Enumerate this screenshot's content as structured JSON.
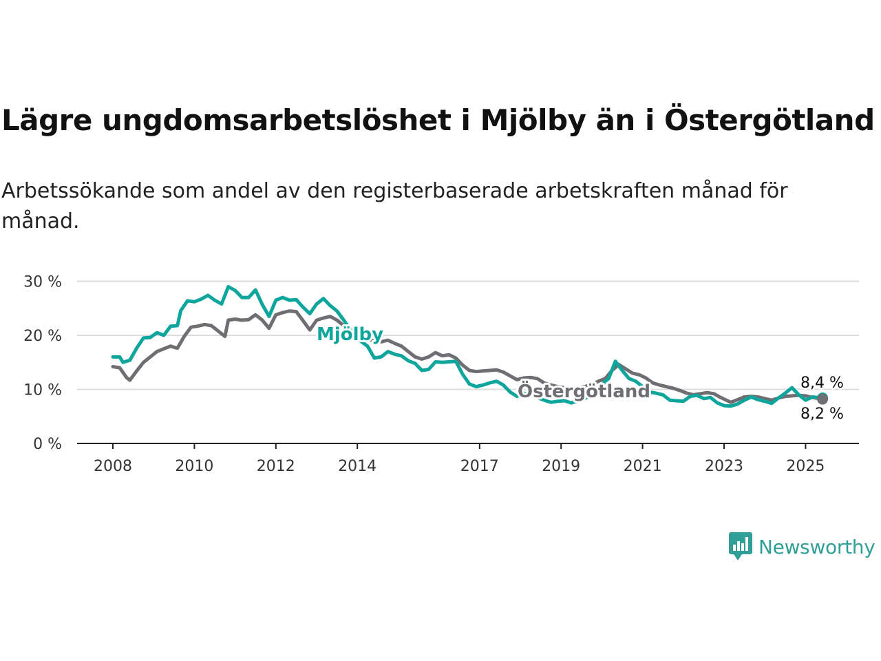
{
  "brand": {
    "name": "Newsworthy",
    "icon": "bar-chart-speech-bubble-icon",
    "color": "#2f9f97"
  },
  "chart_data": {
    "type": "line",
    "title": "Lägre ungdomsarbetslöshet i Mjölby än i Östergötland",
    "subtitle": "Arbetssökande som andel av den registerbaserade arbetskraften månad för månad.",
    "xlabel": "",
    "ylabel": "",
    "x_ticks": [
      "2008",
      "2010",
      "2012",
      "2014",
      "2017",
      "2019",
      "2021",
      "2023",
      "2025"
    ],
    "y_ticks": [
      "0 %",
      "10 %",
      "20 %",
      "30 %"
    ],
    "ylim": [
      0,
      30
    ],
    "xlim": [
      "2008-01",
      "2025-06"
    ],
    "grid": true,
    "legend": "none (direct labels)",
    "series": [
      {
        "name": "Mjölby",
        "color": "#0ea59c",
        "end_label": "8,4 %",
        "points": [
          [
            "2008-01",
            16.0
          ],
          [
            "2008-03",
            16.0
          ],
          [
            "2008-04",
            15.0
          ],
          [
            "2008-06",
            15.4
          ],
          [
            "2008-08",
            17.6
          ],
          [
            "2008-10",
            19.5
          ],
          [
            "2008-12",
            19.6
          ],
          [
            "2009-02",
            20.5
          ],
          [
            "2009-04",
            20.0
          ],
          [
            "2009-06",
            21.7
          ],
          [
            "2009-08",
            21.8
          ],
          [
            "2009-09",
            24.6
          ],
          [
            "2009-11",
            26.4
          ],
          [
            "2010-01",
            26.2
          ],
          [
            "2010-03",
            26.7
          ],
          [
            "2010-05",
            27.4
          ],
          [
            "2010-07",
            26.5
          ],
          [
            "2010-09",
            25.8
          ],
          [
            "2010-11",
            29.0
          ],
          [
            "2011-01",
            28.3
          ],
          [
            "2011-03",
            27.0
          ],
          [
            "2011-05",
            27.0
          ],
          [
            "2011-07",
            28.4
          ],
          [
            "2011-09",
            25.7
          ],
          [
            "2011-11",
            23.5
          ],
          [
            "2012-01",
            26.5
          ],
          [
            "2012-03",
            27.0
          ],
          [
            "2012-05",
            26.5
          ],
          [
            "2012-07",
            26.6
          ],
          [
            "2012-09",
            25.2
          ],
          [
            "2012-11",
            24.0
          ],
          [
            "2013-01",
            25.8
          ],
          [
            "2013-03",
            26.8
          ],
          [
            "2013-05",
            25.5
          ],
          [
            "2013-07",
            24.5
          ],
          [
            "2013-09",
            22.8
          ],
          [
            "2013-11",
            21.0
          ],
          [
            "2014-01",
            19.4
          ],
          [
            "2014-04",
            18.0
          ],
          [
            "2014-06",
            15.8
          ],
          [
            "2014-08",
            16.0
          ],
          [
            "2014-10",
            17.0
          ],
          [
            "2014-12",
            16.5
          ],
          [
            "2015-02",
            16.2
          ],
          [
            "2015-04",
            15.3
          ],
          [
            "2015-06",
            14.8
          ],
          [
            "2015-08",
            13.5
          ],
          [
            "2015-10",
            13.7
          ],
          [
            "2015-12",
            15.1
          ],
          [
            "2016-02",
            15.0
          ],
          [
            "2016-04",
            15.1
          ],
          [
            "2016-06",
            15.2
          ],
          [
            "2016-08",
            12.8
          ],
          [
            "2016-10",
            11.0
          ],
          [
            "2016-12",
            10.5
          ],
          [
            "2017-02",
            10.8
          ],
          [
            "2017-04",
            11.2
          ],
          [
            "2017-06",
            11.5
          ],
          [
            "2017-08",
            10.8
          ],
          [
            "2017-10",
            9.5
          ],
          [
            "2017-12",
            8.7
          ],
          [
            "2018-02",
            9.3
          ],
          [
            "2018-04",
            8.9
          ],
          [
            "2018-06",
            8.5
          ],
          [
            "2018-08",
            8.0
          ],
          [
            "2018-10",
            7.6
          ],
          [
            "2018-12",
            7.8
          ],
          [
            "2019-02",
            7.9
          ],
          [
            "2019-04",
            7.5
          ],
          [
            "2019-06",
            7.9
          ],
          [
            "2019-08",
            8.3
          ],
          [
            "2019-10",
            9.0
          ],
          [
            "2019-12",
            10.0
          ],
          [
            "2020-02",
            11.5
          ],
          [
            "2020-03",
            12.0
          ],
          [
            "2020-05",
            15.2
          ],
          [
            "2020-07",
            13.5
          ],
          [
            "2020-09",
            12.0
          ],
          [
            "2020-11",
            11.5
          ],
          [
            "2021-01",
            10.5
          ],
          [
            "2021-03",
            9.5
          ],
          [
            "2021-05",
            9.3
          ],
          [
            "2021-07",
            9.0
          ],
          [
            "2021-09",
            8.0
          ],
          [
            "2021-11",
            7.9
          ],
          [
            "2022-01",
            7.8
          ],
          [
            "2022-03",
            8.7
          ],
          [
            "2022-05",
            8.9
          ],
          [
            "2022-07",
            8.3
          ],
          [
            "2022-09",
            8.5
          ],
          [
            "2022-11",
            7.5
          ],
          [
            "2023-01",
            7.0
          ],
          [
            "2023-03",
            6.9
          ],
          [
            "2023-05",
            7.3
          ],
          [
            "2023-07",
            8.0
          ],
          [
            "2023-09",
            8.6
          ],
          [
            "2023-11",
            8.1
          ],
          [
            "2024-01",
            7.8
          ],
          [
            "2024-03",
            7.4
          ],
          [
            "2024-05",
            8.4
          ],
          [
            "2024-07",
            9.3
          ],
          [
            "2024-09",
            10.3
          ],
          [
            "2024-11",
            9.0
          ],
          [
            "2025-01",
            8.0
          ],
          [
            "2025-03",
            8.6
          ],
          [
            "2025-06",
            8.4
          ]
        ]
      },
      {
        "name": "Östergötland",
        "color": "#6e6e73",
        "end_label": "8,2 %",
        "points": [
          [
            "2008-01",
            14.2
          ],
          [
            "2008-03",
            14.0
          ],
          [
            "2008-05",
            12.2
          ],
          [
            "2008-06",
            11.7
          ],
          [
            "2008-08",
            13.4
          ],
          [
            "2008-10",
            15.0
          ],
          [
            "2008-12",
            16.0
          ],
          [
            "2009-02",
            17.0
          ],
          [
            "2009-04",
            17.5
          ],
          [
            "2009-06",
            18.0
          ],
          [
            "2009-08",
            17.6
          ],
          [
            "2009-10",
            19.8
          ],
          [
            "2009-12",
            21.5
          ],
          [
            "2010-02",
            21.7
          ],
          [
            "2010-04",
            22.0
          ],
          [
            "2010-06",
            21.8
          ],
          [
            "2010-08",
            20.8
          ],
          [
            "2010-10",
            19.8
          ],
          [
            "2010-11",
            22.8
          ],
          [
            "2011-01",
            23.0
          ],
          [
            "2011-03",
            22.8
          ],
          [
            "2011-05",
            22.9
          ],
          [
            "2011-07",
            23.8
          ],
          [
            "2011-09",
            22.8
          ],
          [
            "2011-11",
            21.3
          ],
          [
            "2012-01",
            23.8
          ],
          [
            "2012-03",
            24.2
          ],
          [
            "2012-05",
            24.5
          ],
          [
            "2012-07",
            24.4
          ],
          [
            "2012-09",
            22.7
          ],
          [
            "2012-11",
            21.0
          ],
          [
            "2013-01",
            22.8
          ],
          [
            "2013-03",
            23.2
          ],
          [
            "2013-05",
            23.5
          ],
          [
            "2013-07",
            22.8
          ],
          [
            "2013-09",
            21.8
          ],
          [
            "2013-11",
            20.8
          ],
          [
            "2014-01",
            19.6
          ],
          [
            "2014-04",
            19.2
          ],
          [
            "2014-06",
            19.0
          ],
          [
            "2014-08",
            18.8
          ],
          [
            "2014-10",
            19.1
          ],
          [
            "2014-12",
            18.5
          ],
          [
            "2015-02",
            18.0
          ],
          [
            "2015-04",
            17.0
          ],
          [
            "2015-06",
            16.0
          ],
          [
            "2015-08",
            15.6
          ],
          [
            "2015-10",
            16.0
          ],
          [
            "2015-12",
            16.8
          ],
          [
            "2016-02",
            16.2
          ],
          [
            "2016-04",
            16.4
          ],
          [
            "2016-06",
            15.8
          ],
          [
            "2016-08",
            14.5
          ],
          [
            "2016-10",
            13.5
          ],
          [
            "2016-12",
            13.3
          ],
          [
            "2017-02",
            13.4
          ],
          [
            "2017-04",
            13.5
          ],
          [
            "2017-06",
            13.6
          ],
          [
            "2017-08",
            13.2
          ],
          [
            "2017-10",
            12.5
          ],
          [
            "2017-12",
            11.8
          ],
          [
            "2018-02",
            12.1
          ],
          [
            "2018-04",
            12.2
          ],
          [
            "2018-06",
            12.0
          ],
          [
            "2018-08",
            11.2
          ],
          [
            "2018-10",
            10.8
          ],
          [
            "2018-12",
            10.5
          ],
          [
            "2019-02",
            10.3
          ],
          [
            "2019-04",
            10.2
          ],
          [
            "2019-06",
            10.3
          ],
          [
            "2019-08",
            10.5
          ],
          [
            "2019-10",
            10.9
          ],
          [
            "2019-12",
            11.5
          ],
          [
            "2020-02",
            12.0
          ],
          [
            "2020-04",
            13.5
          ],
          [
            "2020-06",
            14.6
          ],
          [
            "2020-08",
            13.8
          ],
          [
            "2020-10",
            13.0
          ],
          [
            "2020-12",
            12.7
          ],
          [
            "2021-02",
            12.1
          ],
          [
            "2021-04",
            11.2
          ],
          [
            "2021-06",
            10.8
          ],
          [
            "2021-08",
            10.5
          ],
          [
            "2021-10",
            10.2
          ],
          [
            "2021-12",
            9.8
          ],
          [
            "2022-02",
            9.3
          ],
          [
            "2022-04",
            9.0
          ],
          [
            "2022-06",
            9.2
          ],
          [
            "2022-08",
            9.4
          ],
          [
            "2022-10",
            9.2
          ],
          [
            "2022-12",
            8.5
          ],
          [
            "2023-02",
            7.9
          ],
          [
            "2023-03",
            7.6
          ],
          [
            "2023-05",
            8.1
          ],
          [
            "2023-07",
            8.6
          ],
          [
            "2023-09",
            8.7
          ],
          [
            "2023-11",
            8.6
          ],
          [
            "2024-01",
            8.3
          ],
          [
            "2024-03",
            8.0
          ],
          [
            "2024-05",
            8.4
          ],
          [
            "2024-07",
            8.7
          ],
          [
            "2024-09",
            8.8
          ],
          [
            "2024-11",
            8.9
          ],
          [
            "2025-01",
            8.8
          ],
          [
            "2025-03",
            8.5
          ],
          [
            "2025-06",
            8.2
          ]
        ]
      }
    ]
  }
}
